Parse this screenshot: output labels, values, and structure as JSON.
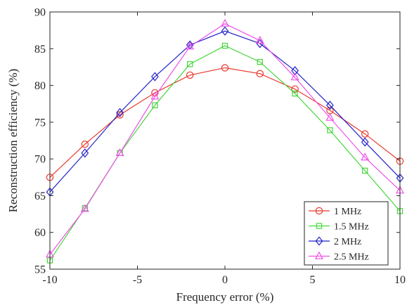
{
  "chart_data": {
    "type": "line",
    "xlabel": "Frequency error (%)",
    "ylabel": "Reconstruction efficiency (%)",
    "xlim": [
      -10,
      10
    ],
    "ylim": [
      55,
      90
    ],
    "xticks": [
      -10,
      -5,
      0,
      5,
      10
    ],
    "yticks": [
      55,
      60,
      65,
      70,
      75,
      80,
      85,
      90
    ],
    "grid": false,
    "legend_position": "bottom-right",
    "x": [
      -10,
      -8,
      -6,
      -4,
      -2,
      0,
      2,
      4,
      6,
      8,
      10
    ],
    "series": [
      {
        "name": "1 MHz",
        "color": "#e8392f",
        "marker": "circle",
        "values": [
          67.5,
          72.0,
          76.0,
          79.0,
          81.4,
          82.4,
          81.6,
          79.5,
          76.6,
          73.4,
          69.7
        ]
      },
      {
        "name": "1.5 MHz",
        "color": "#46d63a",
        "marker": "square",
        "values": [
          56.2,
          63.3,
          70.8,
          77.3,
          82.9,
          85.4,
          83.2,
          78.9,
          73.9,
          68.4,
          62.9
        ]
      },
      {
        "name": "2 MHz",
        "color": "#2323c8",
        "marker": "diamond",
        "values": [
          65.5,
          70.8,
          76.3,
          81.2,
          85.5,
          87.4,
          85.7,
          82.0,
          77.3,
          72.3,
          67.4
        ]
      },
      {
        "name": "2.5 MHz",
        "color": "#ee52e8",
        "marker": "triangle",
        "values": [
          57.0,
          63.2,
          70.8,
          78.5,
          85.3,
          88.4,
          86.1,
          81.1,
          75.6,
          70.2,
          65.7
        ]
      }
    ]
  }
}
